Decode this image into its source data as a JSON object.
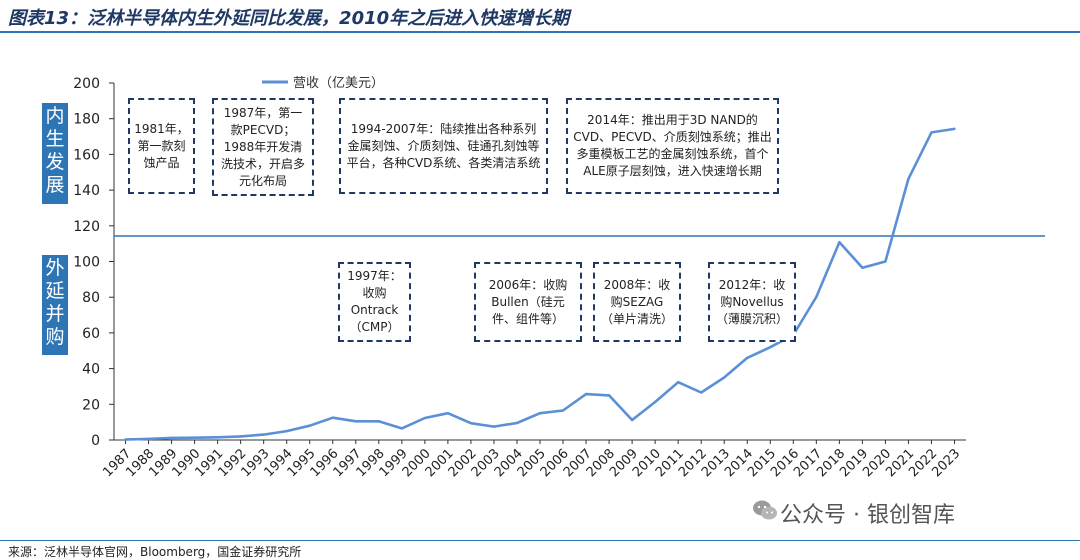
{
  "header": {
    "title": "图表13：泛林半导体内生外延同比发展，2010年之后进入快速增长期"
  },
  "footer": {
    "source": "来源：泛林半导体官网，Bloomberg，国金证券研究所",
    "watermark": "公众号 · 银创智库"
  },
  "side_labels": {
    "organic": [
      "内",
      "生",
      "发",
      "展"
    ],
    "external": [
      "外",
      "延",
      "并",
      "购"
    ]
  },
  "annotations": {
    "a1981": "1981年，第一款刻蚀产品",
    "a1987": "1987年，第一款PECVD；1988年开发清洗技术，开启多元化布局",
    "a1994": "1994-2007年：陆续推出各种系列金属刻蚀、介质刻蚀、硅通孔刻蚀等平台，各种CVD系统、各类清洁系统",
    "a2014": "2014年：推出用于3D NAND的CVD、PECVD、介质刻蚀系统；推出多重模板工艺的金属刻蚀系统，首个ALE原子层刻蚀，进入快速增长期",
    "a1997": "1997年：收购Ontrack（CMP）",
    "a2006": "2006年：收购Bullen（硅元件、组件等）",
    "a2008": "2008年：收购SEZAG（单片清洗）",
    "a2012": "2012年：收购Novellus（薄膜沉积）"
  },
  "chart_data": {
    "type": "line",
    "title": "",
    "xlabel": "",
    "ylabel": "",
    "ylim": [
      0,
      200
    ],
    "yticks": [
      0,
      20,
      40,
      60,
      80,
      100,
      120,
      140,
      160,
      180,
      200
    ],
    "grid": false,
    "legend_position": "top-left",
    "categories": [
      "1987",
      "1988",
      "1989",
      "1990",
      "1991",
      "1992",
      "1993",
      "1994",
      "1995",
      "1996",
      "1997",
      "1998",
      "1999",
      "2000",
      "2001",
      "2002",
      "2003",
      "2004",
      "2005",
      "2006",
      "2007",
      "2008",
      "2009",
      "2010",
      "2011",
      "2012",
      "2013",
      "2014",
      "2015",
      "2016",
      "2017",
      "2018",
      "2019",
      "2020",
      "2021",
      "2022",
      "2023"
    ],
    "series": [
      {
        "name": "营收（亿美元）",
        "color": "#5b8fd6",
        "values": [
          0.3,
          0.6,
          1.2,
          1.3,
          1.5,
          2.0,
          3.0,
          5.0,
          8.0,
          12.5,
          10.5,
          10.5,
          6.5,
          12.3,
          15.0,
          9.4,
          7.5,
          9.5,
          15.0,
          16.5,
          25.7,
          25.0,
          11.2,
          21.3,
          32.4,
          26.6,
          35.0,
          46.0,
          52.0,
          58.9,
          80.1,
          110.8,
          96.5,
          100.0,
          146.3,
          172.3,
          174.3
        ]
      }
    ]
  }
}
